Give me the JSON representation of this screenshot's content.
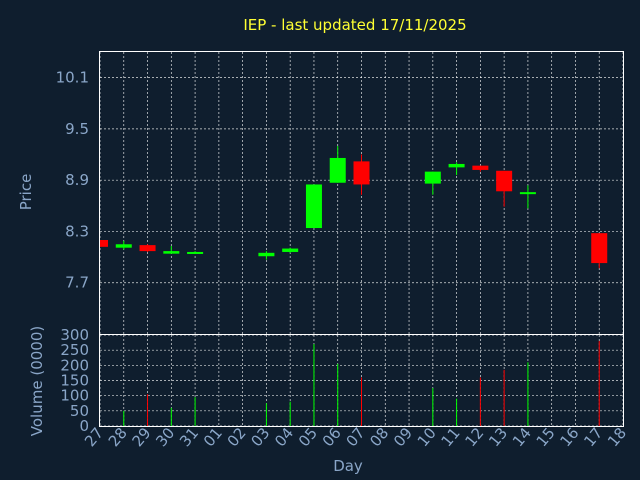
{
  "chart_data": {
    "type": "candlestick",
    "title": "IEP - last updated 17/11/2025",
    "xlabel": "Day",
    "price_ylabel": "Price",
    "volume_ylabel": "Volume (0000)",
    "price_ylim": [
      7.1,
      10.4
    ],
    "price_ticks": [
      "10.1",
      "9.5",
      "8.9",
      "8.3",
      "7.7"
    ],
    "volume_ylim": [
      0,
      300
    ],
    "volume_ticks": [
      "300",
      "250",
      "200",
      "150",
      "100",
      "50",
      "0"
    ],
    "days": [
      "27",
      "28",
      "29",
      "30",
      "31",
      "01",
      "02",
      "03",
      "04",
      "05",
      "06",
      "07",
      "08",
      "09",
      "10",
      "11",
      "12",
      "13",
      "14",
      "15",
      "16",
      "17",
      "18"
    ],
    "candles": [
      {
        "day": "27",
        "open": 8.2,
        "close": 8.12,
        "high": 8.2,
        "low": 8.12
      },
      {
        "day": "28",
        "open": 8.11,
        "close": 8.15,
        "high": 8.19,
        "low": 8.09
      },
      {
        "day": "29",
        "open": 8.14,
        "close": 8.07,
        "high": 8.15,
        "low": 8.06
      },
      {
        "day": "30",
        "open": 8.04,
        "close": 8.07,
        "high": 8.13,
        "low": 8.04
      },
      {
        "day": "31",
        "open": 8.04,
        "close": 8.06,
        "high": 8.07,
        "low": 8.04
      },
      {
        "day": "03",
        "open": 8.01,
        "close": 8.05,
        "high": 8.07,
        "low": 7.97
      },
      {
        "day": "04",
        "open": 8.06,
        "close": 8.1,
        "high": 8.11,
        "low": 8.05
      },
      {
        "day": "05",
        "open": 8.34,
        "close": 8.85,
        "high": 8.85,
        "low": 8.34
      },
      {
        "day": "06",
        "open": 8.87,
        "close": 9.16,
        "high": 9.3,
        "low": 8.87
      },
      {
        "day": "07",
        "open": 9.12,
        "close": 8.85,
        "high": 9.2,
        "low": 8.73
      },
      {
        "day": "10",
        "open": 8.86,
        "close": 9.0,
        "high": 9.0,
        "low": 8.73
      },
      {
        "day": "11",
        "open": 9.05,
        "close": 9.09,
        "high": 9.11,
        "low": 8.96
      },
      {
        "day": "12",
        "open": 9.07,
        "close": 9.02,
        "high": 9.07,
        "low": 9.0
      },
      {
        "day": "13",
        "open": 9.01,
        "close": 8.77,
        "high": 9.01,
        "low": 8.59
      },
      {
        "day": "14",
        "open": 8.75,
        "close": 8.76,
        "high": 8.84,
        "low": 8.57
      },
      {
        "day": "17",
        "open": 8.28,
        "close": 7.93,
        "high": 8.28,
        "low": 7.87
      }
    ],
    "volume": [
      {
        "day": "28",
        "value": 50,
        "dir": "up"
      },
      {
        "day": "29",
        "value": 105,
        "dir": "down"
      },
      {
        "day": "30",
        "value": 60,
        "dir": "up"
      },
      {
        "day": "31",
        "value": 95,
        "dir": "up"
      },
      {
        "day": "03",
        "value": 75,
        "dir": "up"
      },
      {
        "day": "04",
        "value": 80,
        "dir": "up"
      },
      {
        "day": "05",
        "value": 270,
        "dir": "up"
      },
      {
        "day": "06",
        "value": 205,
        "dir": "up"
      },
      {
        "day": "07",
        "value": 160,
        "dir": "down"
      },
      {
        "day": "10",
        "value": 125,
        "dir": "up"
      },
      {
        "day": "11",
        "value": 90,
        "dir": "up"
      },
      {
        "day": "12",
        "value": 160,
        "dir": "down"
      },
      {
        "day": "13",
        "value": 185,
        "dir": "down"
      },
      {
        "day": "14",
        "value": 210,
        "dir": "up"
      },
      {
        "day": "17",
        "value": 280,
        "dir": "down"
      }
    ],
    "colors": {
      "background": "#0f1e2e",
      "up": "#00ff00",
      "down": "#ff0000",
      "title": "#ffff33",
      "axis_text": "#8aa6c8",
      "grid": "#ffffff"
    },
    "grid": true
  }
}
